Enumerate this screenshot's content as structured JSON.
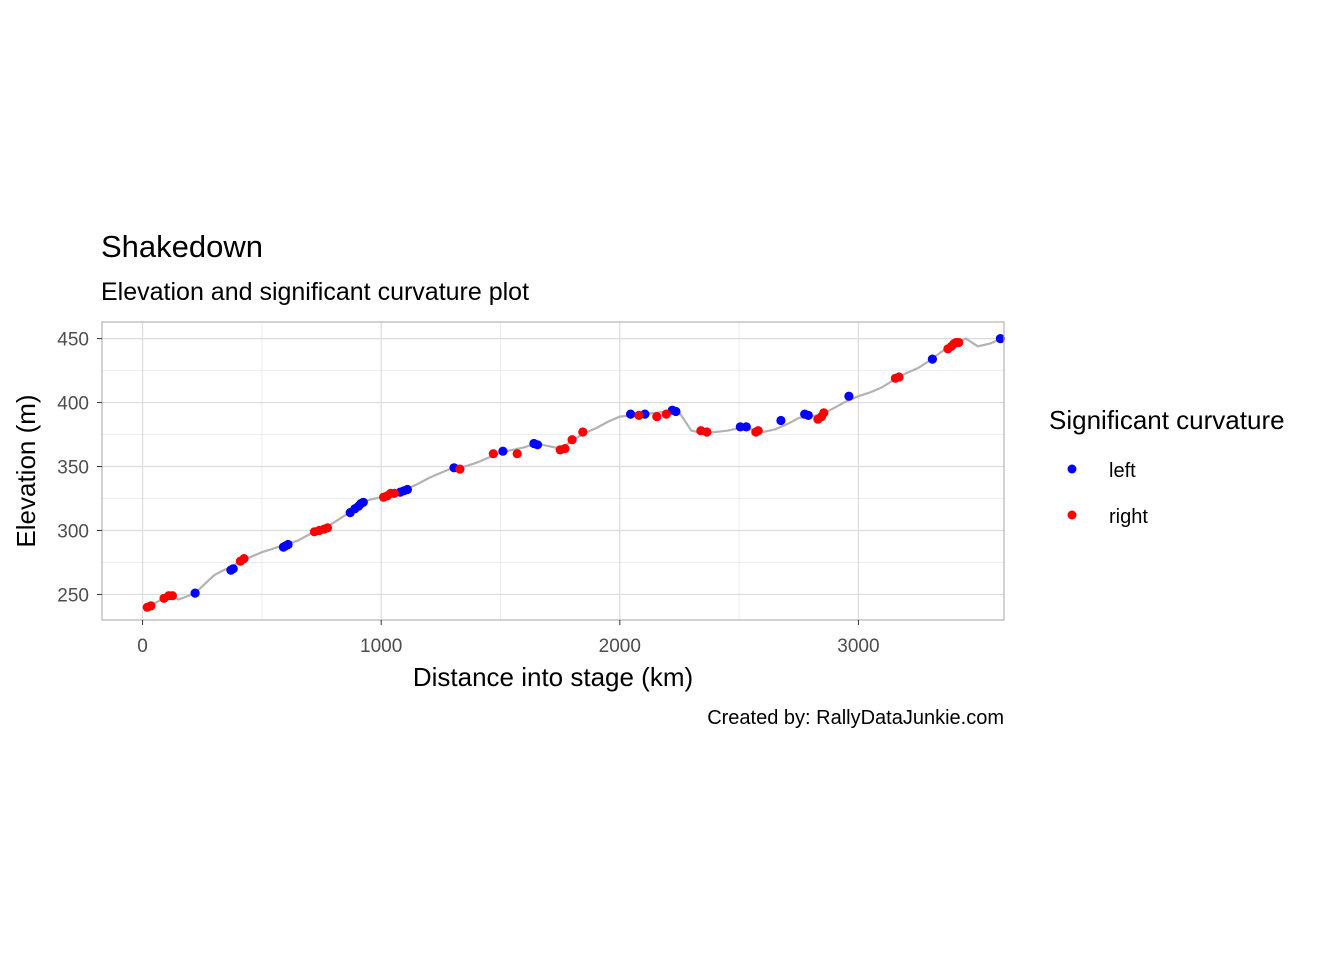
{
  "chart_data": {
    "type": "scatter",
    "title": "Shakedown",
    "subtitle": "Elevation and significant curvature plot",
    "xlabel": "Distance into stage (km)",
    "ylabel": "Elevation (m)",
    "caption": "Created by: RallyDataJunkie.com",
    "xlim": [
      -170,
      3610
    ],
    "ylim": [
      230,
      463
    ],
    "x_ticks": [
      0,
      1000,
      2000,
      3000
    ],
    "y_ticks": [
      250,
      300,
      350,
      400,
      450
    ],
    "x_tick_labels": [
      "0",
      "1000",
      "2000",
      "3000"
    ],
    "y_tick_labels": [
      "250",
      "300",
      "350",
      "400",
      "450"
    ],
    "grid": true,
    "legend": {
      "title": "Significant curvature",
      "position": "right",
      "entries": [
        {
          "label": "left",
          "color": "#0000ff"
        },
        {
          "label": "right",
          "color": "#ff0000"
        }
      ]
    },
    "elevation_line": {
      "color": "#b3b3b3",
      "x": [
        0,
        30,
        60,
        90,
        120,
        150,
        180,
        220,
        260,
        300,
        340,
        380,
        410,
        450,
        500,
        550,
        600,
        650,
        700,
        750,
        800,
        850,
        900,
        950,
        1000,
        1050,
        1100,
        1150,
        1200,
        1250,
        1300,
        1350,
        1400,
        1450,
        1500,
        1550,
        1600,
        1650,
        1700,
        1750,
        1800,
        1850,
        1900,
        1950,
        2000,
        2050,
        2100,
        2150,
        2200,
        2250,
        2300,
        2350,
        2400,
        2450,
        2500,
        2550,
        2600,
        2650,
        2700,
        2750,
        2800,
        2850,
        2900,
        2950,
        3000,
        3050,
        3100,
        3150,
        3200,
        3250,
        3300,
        3350,
        3400,
        3450,
        3500,
        3550,
        3600
      ],
      "y": [
        240,
        241,
        244,
        247,
        249,
        246,
        248,
        251,
        258,
        265,
        269,
        272,
        277,
        279,
        283,
        286,
        289,
        292,
        297,
        301,
        306,
        312,
        319,
        324,
        326,
        329,
        332,
        336,
        341,
        345,
        349,
        350,
        353,
        357,
        361,
        363,
        365,
        368,
        366,
        364,
        370,
        376,
        380,
        385,
        389,
        390,
        391,
        392,
        393,
        392,
        378,
        376,
        377,
        378,
        380,
        379,
        377,
        379,
        383,
        388,
        389,
        391,
        396,
        401,
        405,
        408,
        412,
        418,
        423,
        427,
        433,
        440,
        446,
        450,
        444,
        446,
        450
      ]
    },
    "series": [
      {
        "name": "left",
        "color": "#0000ff",
        "points": [
          {
            "x": 220,
            "y": 251
          },
          {
            "x": 370,
            "y": 269
          },
          {
            "x": 380,
            "y": 270
          },
          {
            "x": 590,
            "y": 287
          },
          {
            "x": 600,
            "y": 288
          },
          {
            "x": 610,
            "y": 289
          },
          {
            "x": 870,
            "y": 314
          },
          {
            "x": 890,
            "y": 317
          },
          {
            "x": 905,
            "y": 319
          },
          {
            "x": 915,
            "y": 321
          },
          {
            "x": 925,
            "y": 322
          },
          {
            "x": 1080,
            "y": 330
          },
          {
            "x": 1095,
            "y": 331
          },
          {
            "x": 1110,
            "y": 332
          },
          {
            "x": 1305,
            "y": 349
          },
          {
            "x": 1510,
            "y": 362
          },
          {
            "x": 1640,
            "y": 368
          },
          {
            "x": 1655,
            "y": 367
          },
          {
            "x": 2045,
            "y": 391
          },
          {
            "x": 2105,
            "y": 391
          },
          {
            "x": 2220,
            "y": 394
          },
          {
            "x": 2235,
            "y": 393
          },
          {
            "x": 2505,
            "y": 381
          },
          {
            "x": 2530,
            "y": 381
          },
          {
            "x": 2675,
            "y": 386
          },
          {
            "x": 2775,
            "y": 391
          },
          {
            "x": 2790,
            "y": 390
          },
          {
            "x": 2960,
            "y": 405
          },
          {
            "x": 3310,
            "y": 434
          },
          {
            "x": 3595,
            "y": 450
          }
        ]
      },
      {
        "name": "right",
        "color": "#ff0000",
        "points": [
          {
            "x": 20,
            "y": 240
          },
          {
            "x": 35,
            "y": 241
          },
          {
            "x": 90,
            "y": 247
          },
          {
            "x": 110,
            "y": 249
          },
          {
            "x": 125,
            "y": 249
          },
          {
            "x": 410,
            "y": 276
          },
          {
            "x": 425,
            "y": 278
          },
          {
            "x": 720,
            "y": 299
          },
          {
            "x": 740,
            "y": 300
          },
          {
            "x": 760,
            "y": 301
          },
          {
            "x": 775,
            "y": 302
          },
          {
            "x": 1010,
            "y": 326
          },
          {
            "x": 1025,
            "y": 327
          },
          {
            "x": 1040,
            "y": 329
          },
          {
            "x": 1055,
            "y": 329
          },
          {
            "x": 1330,
            "y": 348
          },
          {
            "x": 1470,
            "y": 360
          },
          {
            "x": 1570,
            "y": 360
          },
          {
            "x": 1750,
            "y": 363
          },
          {
            "x": 1770,
            "y": 364
          },
          {
            "x": 1800,
            "y": 371
          },
          {
            "x": 1845,
            "y": 377
          },
          {
            "x": 2080,
            "y": 390
          },
          {
            "x": 2155,
            "y": 389
          },
          {
            "x": 2195,
            "y": 391
          },
          {
            "x": 2340,
            "y": 378
          },
          {
            "x": 2365,
            "y": 377
          },
          {
            "x": 2570,
            "y": 377
          },
          {
            "x": 2580,
            "y": 378
          },
          {
            "x": 2830,
            "y": 387
          },
          {
            "x": 2845,
            "y": 389
          },
          {
            "x": 2855,
            "y": 392
          },
          {
            "x": 3155,
            "y": 419
          },
          {
            "x": 3170,
            "y": 420
          },
          {
            "x": 3375,
            "y": 442
          },
          {
            "x": 3390,
            "y": 444
          },
          {
            "x": 3400,
            "y": 446
          },
          {
            "x": 3410,
            "y": 447
          },
          {
            "x": 3420,
            "y": 447
          }
        ]
      }
    ]
  }
}
